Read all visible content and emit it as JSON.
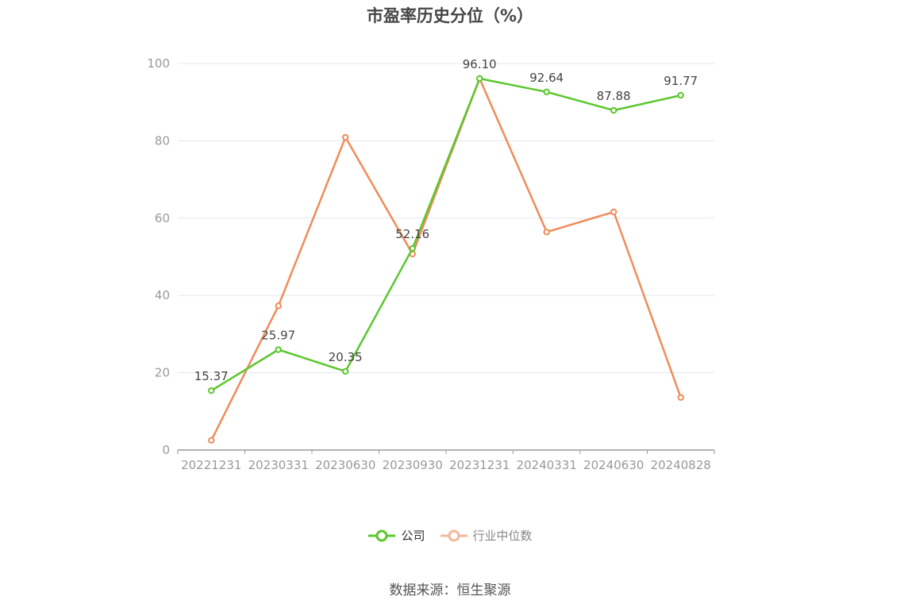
{
  "chart_data": {
    "type": "line",
    "title": "市盈率历史分位（%）",
    "categories": [
      "20221231",
      "20230331",
      "20230630",
      "20230930",
      "20231231",
      "20240331",
      "20240630",
      "20240828"
    ],
    "ylim": [
      0,
      100
    ],
    "yticks": [
      0,
      20,
      40,
      60,
      80,
      100
    ],
    "grid": true,
    "legend_position": "bottom",
    "series": [
      {
        "name": "公司",
        "color": "#5cc72e",
        "values": [
          15.37,
          25.97,
          20.35,
          52.16,
          96.1,
          92.64,
          87.88,
          91.77
        ],
        "labels": [
          "15.37",
          "25.97",
          "20.35",
          "52.16",
          "96.10",
          "92.64",
          "87.88",
          "91.77"
        ]
      },
      {
        "name": "行业中位数",
        "color": "#f08c5a",
        "legend_color": "#f5b89a",
        "values": [
          2.5,
          37.3,
          80.9,
          50.7,
          96.1,
          56.4,
          61.6,
          13.6
        ]
      }
    ]
  },
  "source_note": "数据来源：恒生聚源"
}
